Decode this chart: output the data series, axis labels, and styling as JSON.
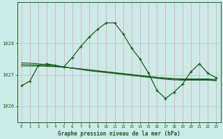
{
  "title": "Graphe pression niveau de la mer (hPa)",
  "background_color": "#cceae7",
  "grid_color": "#aad4d0",
  "line_color": "#1a5c1a",
  "xlim": [
    -0.5,
    23.5
  ],
  "ylim": [
    1025.5,
    1029.3
  ],
  "yticks": [
    1026,
    1027,
    1028
  ],
  "xticks": [
    0,
    1,
    2,
    3,
    4,
    5,
    6,
    7,
    8,
    9,
    10,
    11,
    12,
    13,
    14,
    15,
    16,
    17,
    18,
    19,
    20,
    21,
    22,
    23
  ],
  "main_series": {
    "x": [
      0,
      1,
      2,
      3,
      4,
      5,
      6,
      7,
      8,
      9,
      10,
      11,
      12,
      13,
      14,
      15,
      16,
      17,
      18,
      19,
      20,
      21,
      22,
      23
    ],
    "y": [
      1026.65,
      1026.8,
      1027.3,
      1027.35,
      1027.3,
      1027.25,
      1027.55,
      1027.9,
      1028.2,
      1028.45,
      1028.65,
      1028.65,
      1028.3,
      1027.85,
      1027.5,
      1027.05,
      1026.5,
      1026.25,
      1026.45,
      1026.7,
      1027.1,
      1027.35,
      1027.05,
      1026.9
    ]
  },
  "smooth_series": [
    {
      "x": [
        0,
        1,
        2,
        3,
        4,
        5,
        6,
        7,
        8,
        9,
        10,
        11,
        12,
        13,
        14,
        15,
        16,
        17,
        18,
        19,
        20,
        21,
        22,
        23
      ],
      "y": [
        1027.28,
        1027.28,
        1027.28,
        1027.27,
        1027.26,
        1027.24,
        1027.22,
        1027.19,
        1027.16,
        1027.13,
        1027.1,
        1027.07,
        1027.04,
        1027.01,
        1026.98,
        1026.95,
        1026.92,
        1026.9,
        1026.88,
        1026.87,
        1026.87,
        1026.87,
        1026.87,
        1026.85
      ]
    },
    {
      "x": [
        0,
        1,
        2,
        3,
        4,
        5,
        6,
        7,
        8,
        9,
        10,
        11,
        12,
        13,
        14,
        15,
        16,
        17,
        18,
        19,
        20,
        21,
        22,
        23
      ],
      "y": [
        1027.33,
        1027.32,
        1027.31,
        1027.29,
        1027.27,
        1027.24,
        1027.21,
        1027.18,
        1027.15,
        1027.12,
        1027.09,
        1027.06,
        1027.03,
        1027.0,
        1026.97,
        1026.94,
        1026.91,
        1026.88,
        1026.86,
        1026.85,
        1026.85,
        1026.85,
        1026.85,
        1026.83
      ]
    },
    {
      "x": [
        0,
        1,
        2,
        3,
        4,
        5,
        6,
        7,
        8,
        9,
        10,
        11,
        12,
        13,
        14,
        15,
        16,
        17,
        18,
        19,
        20,
        21,
        22,
        23
      ],
      "y": [
        1027.38,
        1027.37,
        1027.35,
        1027.32,
        1027.29,
        1027.25,
        1027.21,
        1027.17,
        1027.13,
        1027.1,
        1027.07,
        1027.04,
        1027.01,
        1026.98,
        1026.95,
        1026.92,
        1026.89,
        1026.86,
        1026.84,
        1026.83,
        1026.83,
        1026.83,
        1026.83,
        1026.81
      ]
    }
  ]
}
